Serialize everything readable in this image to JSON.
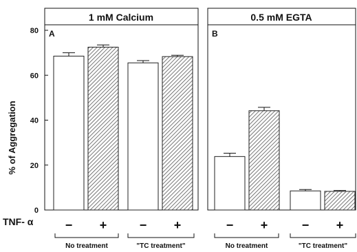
{
  "chart_data": [
    {
      "type": "bar",
      "panel_letter": "A",
      "title": "1 mM Calcium",
      "ylabel": "% of Aggregation",
      "ylim": [
        0,
        80
      ],
      "yticks": [
        "0",
        "20",
        "40",
        "60",
        "80"
      ],
      "groups": [
        "No treatment",
        "\"TC treatment\""
      ],
      "bars": [
        {
          "group": "No treatment",
          "tnf": "−",
          "value": 68.5,
          "error": 1.5,
          "fill": "white"
        },
        {
          "group": "No treatment",
          "tnf": "+",
          "value": 72.5,
          "error": 1.0,
          "fill": "hatched"
        },
        {
          "group": "\"TC treatment\"",
          "tnf": "−",
          "value": 65.5,
          "error": 1.0,
          "fill": "white"
        },
        {
          "group": "\"TC treatment\"",
          "tnf": "+",
          "value": 68.3,
          "error": 0.6,
          "fill": "hatched"
        }
      ]
    },
    {
      "type": "bar",
      "panel_letter": "B",
      "title": "0.5 mM EGTA",
      "ylim": [
        0,
        80
      ],
      "groups": [
        "No treatment",
        "\"TC treatment\""
      ],
      "bars": [
        {
          "group": "No treatment",
          "tnf": "−",
          "value": 23.8,
          "error": 1.5,
          "fill": "white"
        },
        {
          "group": "No treatment",
          "tnf": "+",
          "value": 44.2,
          "error": 1.5,
          "fill": "hatched"
        },
        {
          "group": "\"TC treatment\"",
          "tnf": "−",
          "value": 8.5,
          "error": 0.6,
          "fill": "white"
        },
        {
          "group": "\"TC treatment\"",
          "tnf": "+",
          "value": 8.3,
          "error": 0.4,
          "fill": "hatched"
        }
      ]
    }
  ],
  "treatment_row_label": "TNF- α",
  "colors": {
    "axis": "#111111",
    "bar_edge": "#222222",
    "hatch": "#555555",
    "background": "#ffffff"
  }
}
